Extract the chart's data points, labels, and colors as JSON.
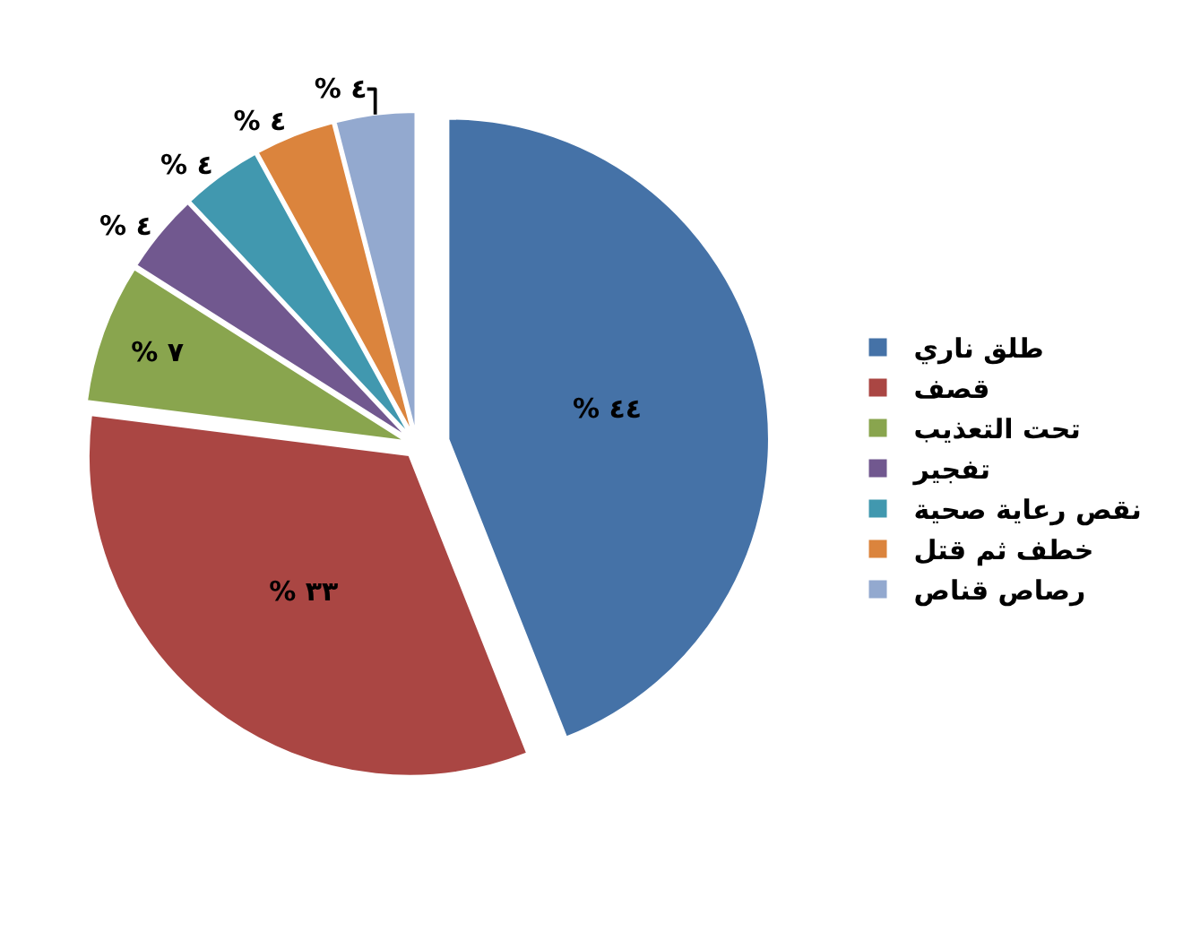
{
  "chart_data": {
    "type": "pie",
    "categories": [
      "طلق ناري",
      "قصف",
      "تحت التعذيب",
      "تفجير",
      "نقص رعاية صحية",
      "خطف ثم قتل",
      "رصاص قناص"
    ],
    "values": [
      44,
      33,
      7,
      4,
      4,
      4,
      4
    ],
    "colors": [
      "#4572a7",
      "#aa4643",
      "#89a54e",
      "#71588f",
      "#4198af",
      "#db843d",
      "#93a9cf"
    ],
    "value_labels": [
      "% ٤٤",
      "% ٣٣",
      "% ٧",
      "% ٤",
      "% ٤",
      "% ٤",
      "% ٤"
    ],
    "legend": "right"
  }
}
